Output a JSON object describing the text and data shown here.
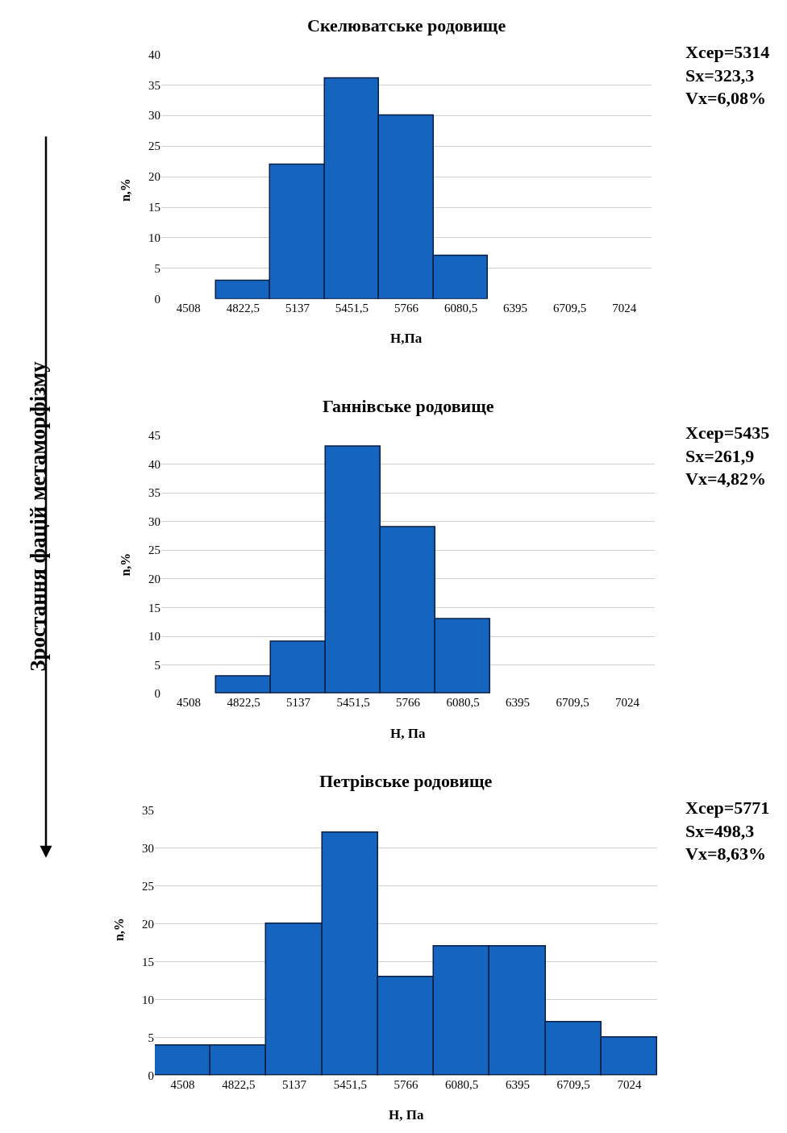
{
  "chart_data": [
    {
      "type": "bar",
      "title": "Скелюватське родовище",
      "xlabel": "H,Па",
      "ylabel": "n,%",
      "categories": [
        "4508",
        "4822,5",
        "5137",
        "5451,5",
        "5766",
        "6080,5",
        "6395",
        "6709,5",
        "7024"
      ],
      "values": [
        0,
        3,
        22,
        36,
        30,
        7,
        0,
        0,
        0
      ],
      "color": "#1565c0",
      "ylim": [
        0,
        40
      ],
      "yticks": [
        0,
        5,
        10,
        15,
        20,
        25,
        30,
        35,
        40
      ],
      "grid": "y",
      "annotations": [
        "Xcep=5314\nSx=323,3\nVx=6,08%",
        "Зростання фацій метаморфізму"
      ]
    },
    {
      "type": "bar",
      "title": "Ганнівське родовище",
      "xlabel": "H, Па",
      "ylabel": "n,%",
      "categories": [
        "4508",
        "4822,5",
        "5137",
        "5451,5",
        "5766",
        "6080,5",
        "6395",
        "6709,5",
        "7024"
      ],
      "values": [
        0,
        3,
        9,
        43,
        29,
        13,
        0,
        0,
        0
      ],
      "color": "#1565c0",
      "ylim": [
        0,
        45
      ],
      "yticks": [
        0,
        5,
        10,
        15,
        20,
        25,
        30,
        35,
        40,
        45
      ],
      "grid": "y",
      "annotations": [
        "Xcep=5435\nSx=261,9\nVx=4,82%"
      ]
    },
    {
      "type": "bar",
      "title": "Петрівське родовище",
      "xlabel": "H, Па",
      "ylabel": "n,%",
      "categories": [
        "4508",
        "4822,5",
        "5137",
        "5451,5",
        "5766",
        "6080,5",
        "6395",
        "6709,5",
        "7024"
      ],
      "values": [
        4,
        4,
        20,
        32,
        13,
        17,
        17,
        7,
        5
      ],
      "color": "#1565c0",
      "ylim": [
        0,
        35
      ],
      "yticks": [
        0,
        5,
        10,
        15,
        20,
        25,
        30,
        35
      ],
      "grid": "y",
      "annotations": [
        "Xcep=5771\nSx=498,3\nVx=8,63%"
      ]
    }
  ]
}
